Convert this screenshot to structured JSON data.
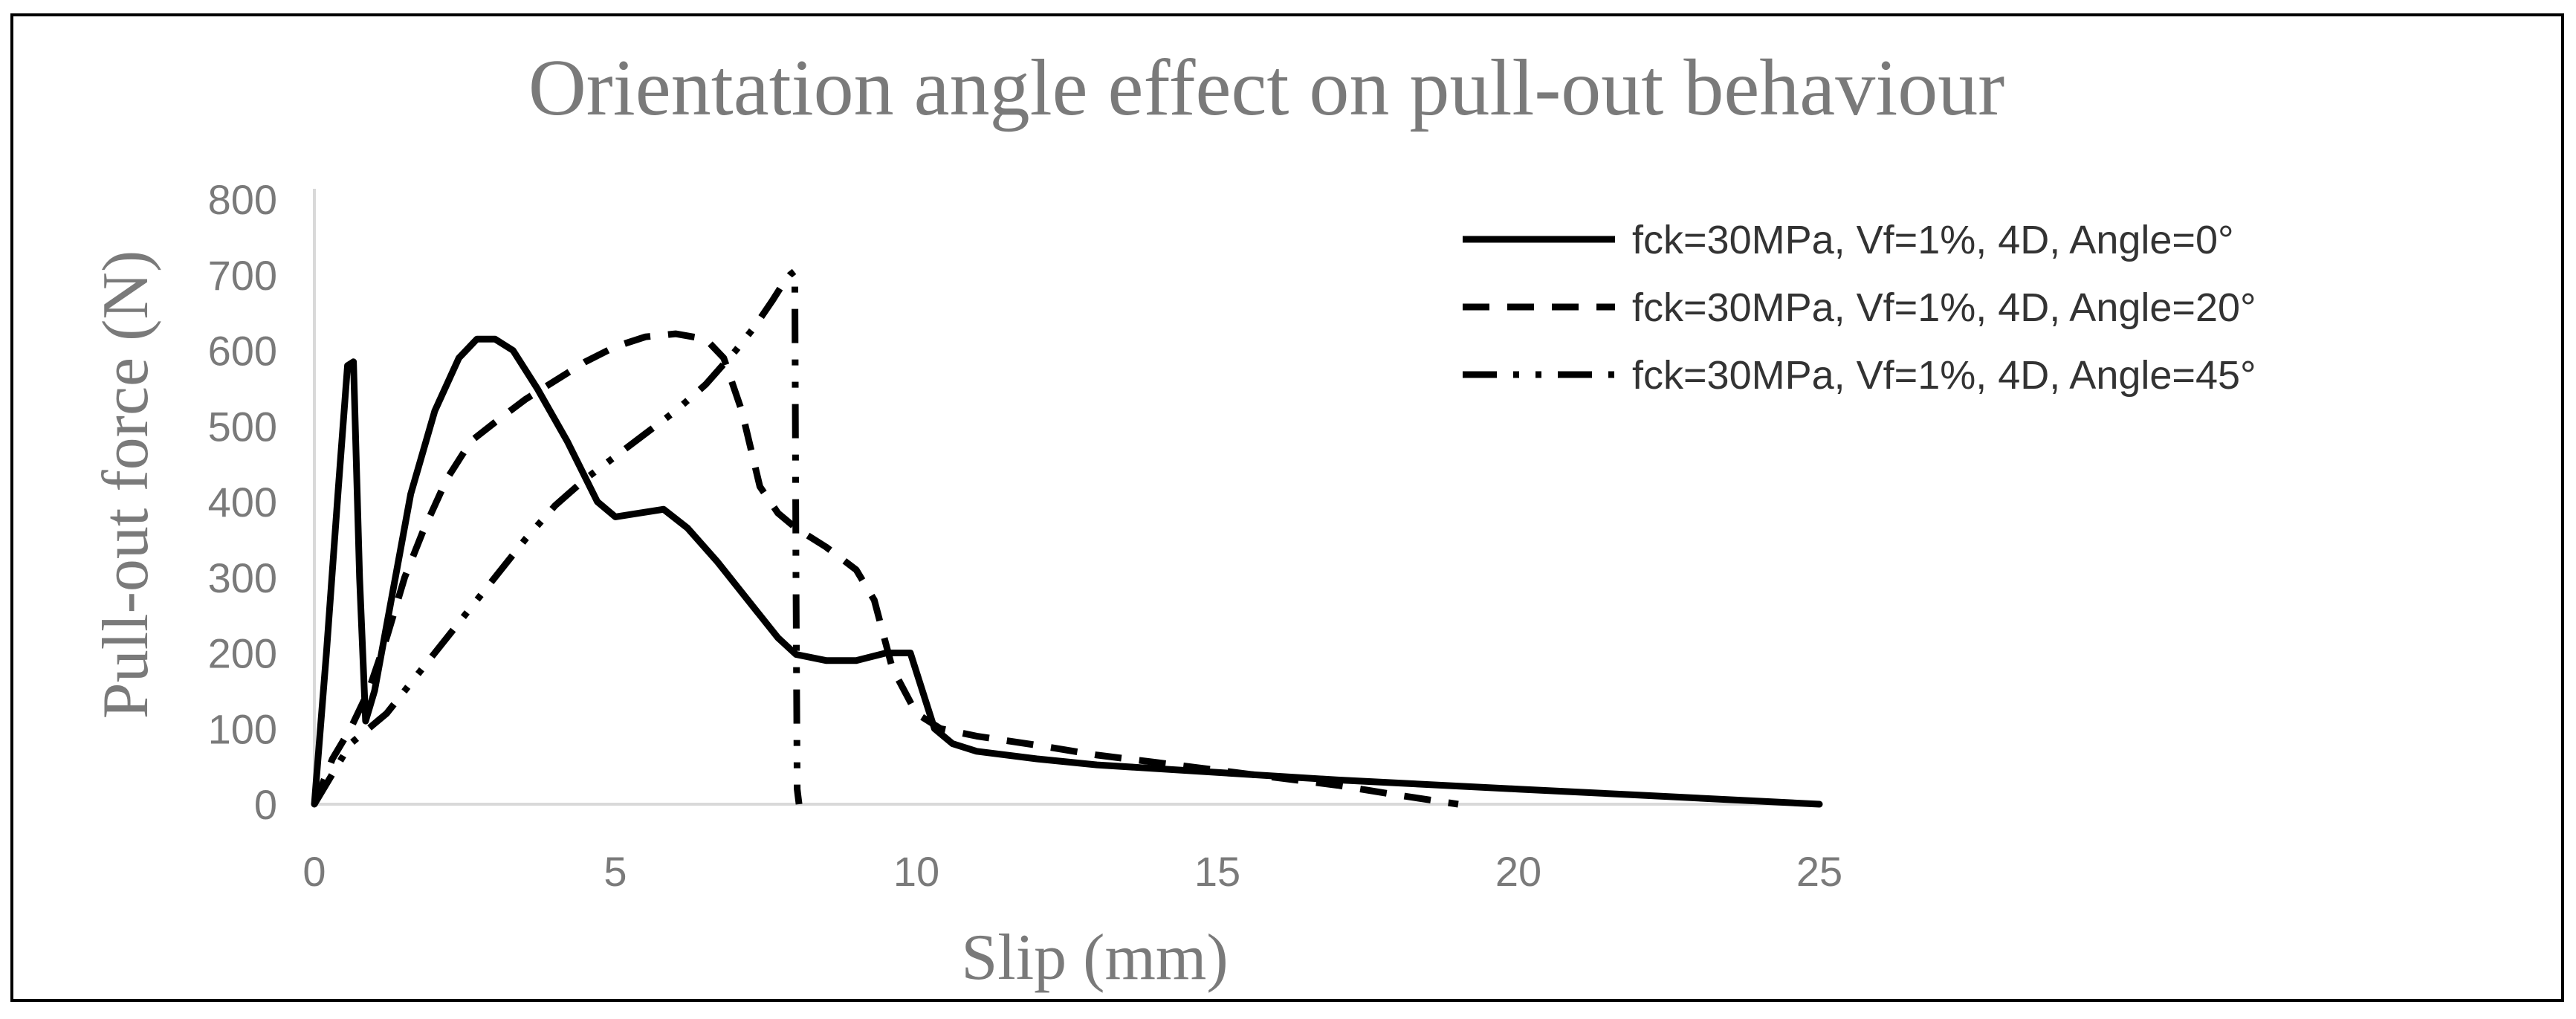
{
  "chart_data": {
    "type": "line",
    "title": "Orientation angle effect on pull-out behaviour",
    "xlabel": "Slip (mm)",
    "ylabel": "Pull-out force (N)",
    "xlim": [
      0,
      25
    ],
    "ylim": [
      0,
      800
    ],
    "xticks": [
      0,
      5,
      10,
      15,
      20,
      25
    ],
    "yticks": [
      0,
      100,
      200,
      300,
      400,
      500,
      600,
      700,
      800
    ],
    "grid": false,
    "legend_position": "top-right",
    "colors": {
      "series": "#000000",
      "text": "#7a7a7a",
      "axis": "#d9d9d9"
    },
    "series": [
      {
        "name": "fck=30MPa, Vf=1%, 4D, Angle=0°",
        "style": "solid",
        "x": [
          0,
          0.2,
          0.4,
          0.55,
          0.65,
          0.75,
          0.85,
          1.0,
          1.3,
          1.6,
          2.0,
          2.4,
          2.7,
          3.0,
          3.3,
          3.7,
          4.2,
          4.7,
          5.0,
          5.4,
          5.8,
          6.2,
          6.7,
          7.2,
          7.7,
          8.0,
          8.5,
          9.0,
          9.5,
          9.9,
          10.1,
          10.3,
          10.6,
          11.0,
          12.0,
          13.0,
          15.0,
          17.0,
          20.0,
          22.0,
          25.0
        ],
        "y": [
          0,
          200,
          420,
          580,
          585,
          300,
          110,
          150,
          280,
          410,
          520,
          590,
          615,
          615,
          600,
          550,
          480,
          400,
          380,
          385,
          390,
          365,
          320,
          270,
          220,
          198,
          190,
          190,
          200,
          200,
          150,
          100,
          80,
          70,
          60,
          52,
          42,
          32,
          20,
          12,
          0
        ]
      },
      {
        "name": "fck=30MPa, Vf=1%, 4D, Angle=20°",
        "style": "dashed",
        "x": [
          0,
          0.3,
          0.6,
          0.9,
          1.2,
          1.5,
          1.8,
          2.2,
          2.6,
          3.0,
          3.5,
          4.0,
          4.5,
          5.0,
          5.5,
          6.0,
          6.5,
          6.8,
          7.1,
          7.4,
          7.7,
          8.0,
          8.5,
          9.0,
          9.3,
          9.6,
          10.0,
          10.4,
          11.0,
          12.0,
          13.0,
          14.0,
          15.0,
          16.0,
          17.0,
          18.0,
          19.0
        ],
        "y": [
          0,
          60,
          100,
          150,
          220,
          300,
          360,
          430,
          480,
          505,
          535,
          560,
          585,
          605,
          618,
          622,
          615,
          590,
          520,
          420,
          385,
          365,
          340,
          310,
          270,
          180,
          120,
          100,
          90,
          78,
          65,
          55,
          45,
          35,
          25,
          12,
          0
        ]
      },
      {
        "name": "fck=30MPa, Vf=1%, 4D, Angle=45°",
        "style": "dashdotdot",
        "x": [
          0,
          0.3,
          0.6,
          0.9,
          1.2,
          1.6,
          2.0,
          2.5,
          3.0,
          3.5,
          4.0,
          4.5,
          5.0,
          5.5,
          6.0,
          6.5,
          7.0,
          7.3,
          7.6,
          7.8,
          7.9,
          7.98,
          8.0,
          8.02,
          8.05
        ],
        "y": [
          0,
          40,
          80,
          100,
          120,
          160,
          200,
          250,
          300,
          350,
          395,
          430,
          460,
          490,
          520,
          555,
          600,
          630,
          665,
          690,
          700,
          705,
          300,
          20,
          0
        ]
      }
    ]
  }
}
